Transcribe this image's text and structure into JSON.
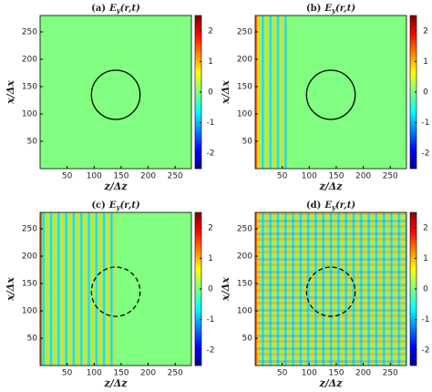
{
  "chart_data": [
    {
      "type": "heatmap",
      "label": "(a)",
      "quantity": "E",
      "subscript": "y",
      "args": "(r,t)",
      "xlabel": "z/Δz",
      "ylabel": "x/Δx",
      "xlim": [
        0,
        280
      ],
      "ylim": [
        0,
        280
      ],
      "xticks": [
        50,
        100,
        150,
        200,
        250
      ],
      "yticks": [
        50,
        100,
        150,
        200,
        250
      ],
      "clim": [
        -2.5,
        2.5
      ],
      "cticks": [
        -2,
        -1,
        0,
        1,
        2
      ],
      "circle": {
        "cx": 140,
        "cy": 135,
        "r": 45,
        "style": "solid"
      }
    },
    {
      "type": "heatmap",
      "label": "(b)",
      "quantity": "E",
      "subscript": "y",
      "args": "(r,t)",
      "xlabel": "z/Δz",
      "ylabel": "x/Δx",
      "xlim": [
        0,
        280
      ],
      "ylim": [
        0,
        280
      ],
      "xticks": [
        50,
        100,
        150,
        200,
        250
      ],
      "yticks": [
        50,
        100,
        150,
        200,
        250
      ],
      "clim": [
        -2.5,
        2.5
      ],
      "cticks": [
        -2,
        -1,
        0,
        1,
        2
      ],
      "circle": {
        "cx": 140,
        "cy": 135,
        "r": 45,
        "style": "solid"
      }
    },
    {
      "type": "heatmap",
      "label": "(c)",
      "quantity": "E",
      "subscript": "y",
      "args": "(r,t)",
      "xlabel": "z/Δz",
      "ylabel": "x/Δx",
      "xlim": [
        0,
        280
      ],
      "ylim": [
        0,
        280
      ],
      "xticks": [
        50,
        100,
        150,
        200,
        250
      ],
      "yticks": [
        50,
        100,
        150,
        200,
        250
      ],
      "clim": [
        -2.5,
        2.5
      ],
      "cticks": [
        -2,
        -1,
        0,
        1,
        2
      ],
      "circle": {
        "cx": 140,
        "cy": 135,
        "r": 45,
        "style": "dashed"
      }
    },
    {
      "type": "heatmap",
      "label": "(d)",
      "quantity": "E",
      "subscript": "y",
      "args": "(r,t)",
      "xlabel": "z/Δz",
      "ylabel": "x/Δx",
      "xlim": [
        0,
        280
      ],
      "ylim": [
        0,
        280
      ],
      "xticks": [
        50,
        100,
        150,
        200,
        250
      ],
      "yticks": [
        50,
        100,
        150,
        200,
        250
      ],
      "clim": [
        -2.5,
        2.5
      ],
      "cticks": [
        -2,
        -1,
        0,
        1,
        2
      ],
      "circle": {
        "cx": 140,
        "cy": 135,
        "r": 45,
        "style": "dashed"
      }
    }
  ]
}
